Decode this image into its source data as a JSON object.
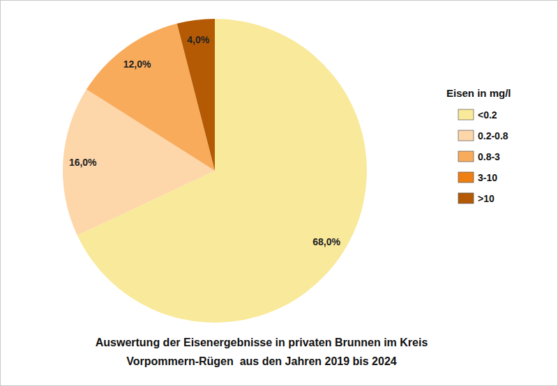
{
  "chart_data": {
    "type": "pie",
    "title": "Auswertung der Eisenergebnisse in privaten Brunnen im Kreis\nVorpommern-Rügen  aus den Jahren 2019 bis 2024",
    "legend_title": "Eisen in mg/l",
    "categories": [
      "<0.2",
      "0.2-0.8",
      "0.8-3",
      "3-10",
      ">10"
    ],
    "values": [
      68,
      16,
      12,
      0,
      4
    ],
    "value_labels": [
      "68,0%",
      "16,0%",
      "12,0%",
      null,
      "4,0%"
    ],
    "colors": [
      "#f9e99a",
      "#fdd6aa",
      "#f9ab5c",
      "#ee7f12",
      "#b45a04"
    ],
    "data_labels": true,
    "legend": "right"
  }
}
